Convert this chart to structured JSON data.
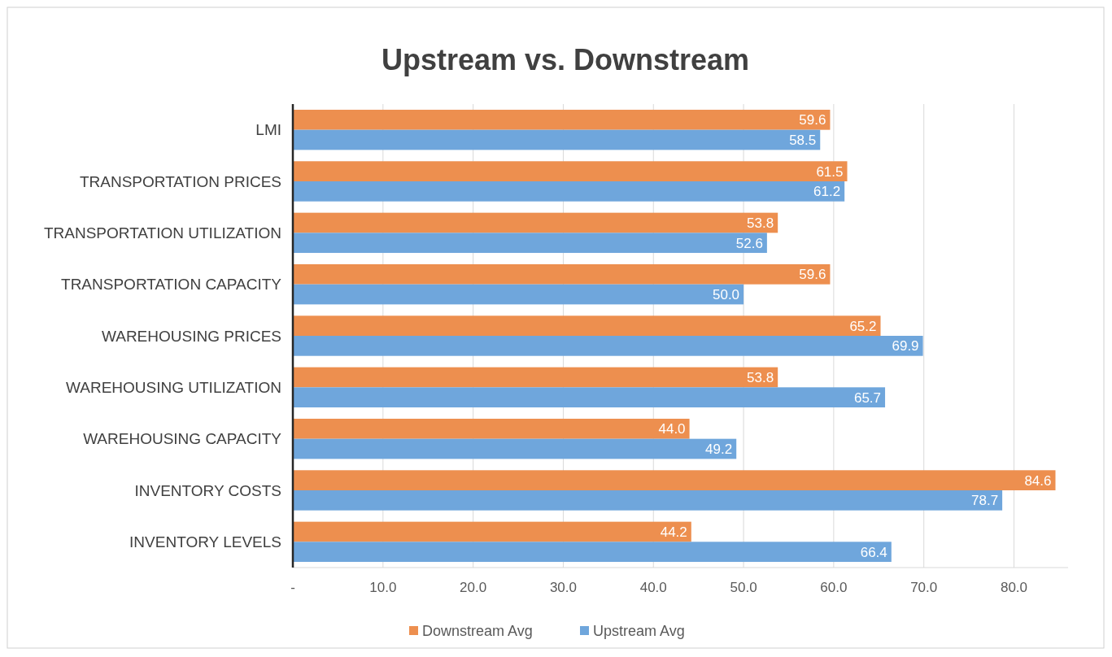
{
  "chart_data": {
    "type": "bar",
    "orientation": "horizontal",
    "title": "Upstream vs. Downstream",
    "categories": [
      "LMI",
      "TRANSPORTATION PRICES",
      "TRANSPORTATION UTILIZATION",
      "TRANSPORTATION CAPACITY",
      "WAREHOUSING PRICES",
      "WAREHOUSING UTILIZATION",
      "WAREHOUSING CAPACITY",
      "INVENTORY COSTS",
      "INVENTORY LEVELS"
    ],
    "series": [
      {
        "name": "Downstream Avg",
        "color": "#ed8f4f",
        "values": [
          59.6,
          61.5,
          53.8,
          59.6,
          65.2,
          53.8,
          44.0,
          84.6,
          44.2
        ],
        "value_labels": [
          "59.6",
          "61.5",
          "53.8",
          "59.6",
          "65.2",
          "53.8",
          "44.0",
          "84.6",
          "44.2"
        ]
      },
      {
        "name": "Upstream Avg",
        "color": "#6fa6dc",
        "values": [
          58.5,
          61.2,
          52.6,
          50.0,
          69.9,
          65.7,
          49.2,
          78.7,
          66.4
        ],
        "value_labels": [
          "58.5",
          "61.2",
          "52.6",
          "50.0",
          "69.9",
          "65.7",
          "49.2",
          "78.7",
          "66.4"
        ]
      }
    ],
    "xlim": [
      0,
      86
    ],
    "xticks": [
      {
        "value": 0,
        "label": "-"
      },
      {
        "value": 10,
        "label": "10.0"
      },
      {
        "value": 20,
        "label": "20.0"
      },
      {
        "value": 30,
        "label": "30.0"
      },
      {
        "value": 40,
        "label": "40.0"
      },
      {
        "value": 50,
        "label": "50.0"
      },
      {
        "value": 60,
        "label": "60.0"
      },
      {
        "value": 70,
        "label": "70.0"
      },
      {
        "value": 80,
        "label": "80.0"
      }
    ],
    "grid": "x",
    "legend": "bottom"
  }
}
